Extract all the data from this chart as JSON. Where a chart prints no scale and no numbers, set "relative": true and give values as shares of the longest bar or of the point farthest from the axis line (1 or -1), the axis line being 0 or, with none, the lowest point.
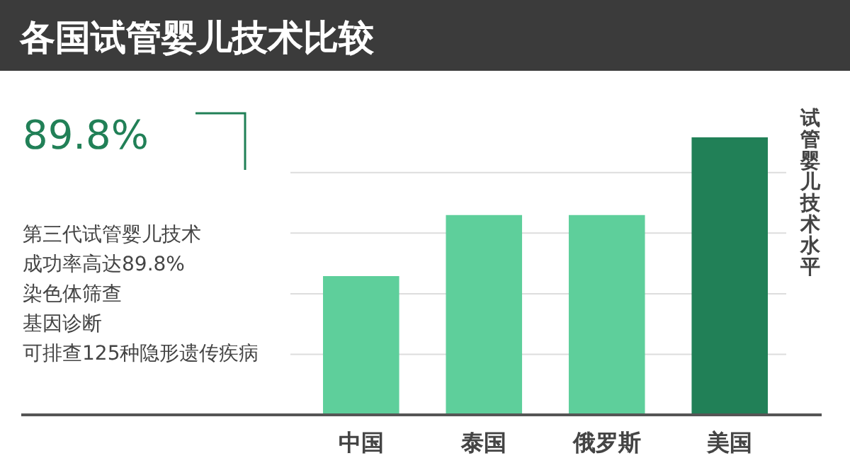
{
  "chart_data": {
    "type": "bar",
    "title": "各国试管婴儿技术比较",
    "ylabel": "试管婴儿技术水平",
    "categories": [
      "中国",
      "泰国",
      "俄罗斯",
      "美国"
    ],
    "values": [
      0.5,
      0.72,
      0.72,
      1
    ],
    "colors": [
      "#5ecf9b",
      "#5ecf9b",
      "#5ecf9b",
      "#218057"
    ],
    "relative": true,
    "grid": true,
    "annotations": [
      "89.8%",
      "第三代试管婴儿技术",
      "成功率高达89.8%",
      "染色体筛查",
      "基因诊断",
      "可排查125种隐形遗传疾病"
    ]
  }
}
